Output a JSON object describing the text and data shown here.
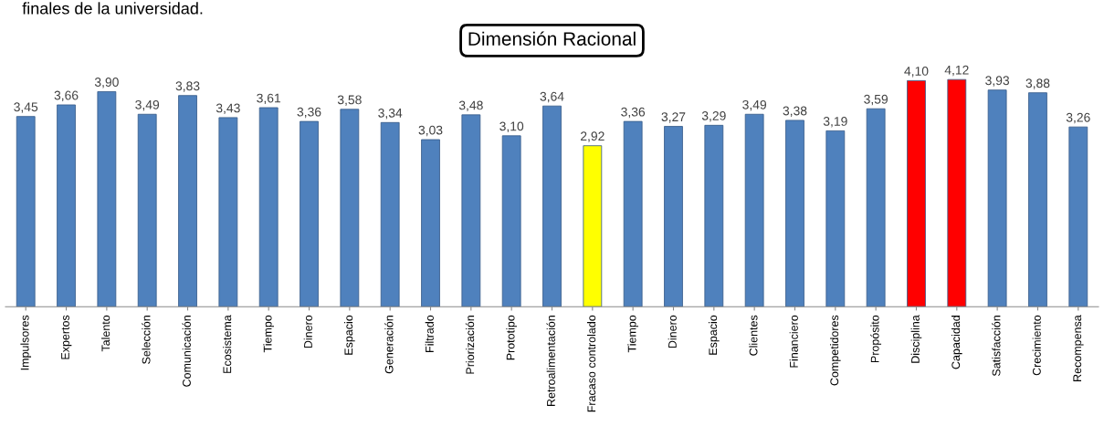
{
  "chart_data": {
    "type": "bar",
    "title": "Dimensión Racional",
    "annotations": [
      "finales de la universidad."
    ],
    "categories": [
      "Impulsores",
      "Expertos",
      "Talento",
      "Selección",
      "Comunicación",
      "Ecosistema",
      "Tiempo",
      "Dinero",
      "Espacio",
      "Generación",
      "Filtrado",
      "Priorización",
      "Prototipo",
      "Retroalimentación",
      "Fracaso controlado",
      "Tiempo",
      "Dinero",
      "Espacio",
      "Clientes",
      "Financiero",
      "Competidores",
      "Propósito",
      "Disciplina",
      "Capacidad",
      "Satisfacción",
      "Crecimiento",
      "Recompensa"
    ],
    "values": [
      3.45,
      3.66,
      3.9,
      3.49,
      3.83,
      3.43,
      3.61,
      3.36,
      3.58,
      3.34,
      3.03,
      3.48,
      3.1,
      3.64,
      2.92,
      3.36,
      3.27,
      3.29,
      3.49,
      3.38,
      3.19,
      3.59,
      4.1,
      4.12,
      3.93,
      3.88,
      3.26
    ],
    "value_labels": [
      "3,45",
      "3,66",
      "3,90",
      "3,49",
      "3,83",
      "3,43",
      "3,61",
      "3,36",
      "3,58",
      "3,34",
      "3,03",
      "3,48",
      "3,10",
      "3,64",
      "2,92",
      "3,36",
      "3,27",
      "3,29",
      "3,49",
      "3,38",
      "3,19",
      "3,59",
      "4,10",
      "4,12",
      "3,93",
      "3,88",
      "3,26"
    ],
    "colors": [
      "#4f81bd",
      "#4f81bd",
      "#4f81bd",
      "#4f81bd",
      "#4f81bd",
      "#4f81bd",
      "#4f81bd",
      "#4f81bd",
      "#4f81bd",
      "#4f81bd",
      "#4f81bd",
      "#4f81bd",
      "#4f81bd",
      "#4f81bd",
      "#ffff00",
      "#4f81bd",
      "#4f81bd",
      "#4f81bd",
      "#4f81bd",
      "#4f81bd",
      "#4f81bd",
      "#4f81bd",
      "#ff0000",
      "#ff0000",
      "#4f81bd",
      "#4f81bd",
      "#4f81bd"
    ],
    "tick_labels": "x",
    "grid": false
  }
}
